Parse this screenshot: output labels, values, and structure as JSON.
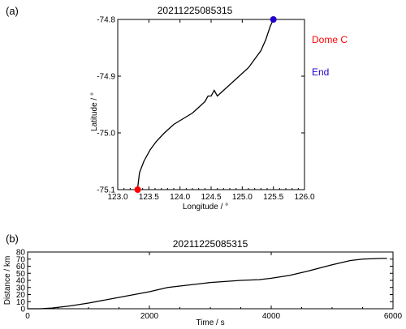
{
  "chart_data": [
    {
      "panel_label": "(a)",
      "type": "line",
      "title": "20211225085315",
      "xlabel": "Longitude / °",
      "ylabel": "Latitude / °",
      "xlim": [
        123.0,
        126.0
      ],
      "ylim": [
        -75.1,
        -74.8
      ],
      "xticks": [
        "123.0",
        "123.5",
        "124.0",
        "124.5",
        "125.0",
        "125.5",
        "126.0"
      ],
      "yticks": [
        "-74.8",
        "-74.9",
        "-75.0",
        "-75.1"
      ],
      "grid": false,
      "series": [
        {
          "x": [
            123.32,
            123.35,
            123.42,
            123.52,
            123.62,
            123.75,
            123.9,
            124.05,
            124.2,
            124.3,
            124.4,
            124.45,
            124.5,
            124.55,
            124.6,
            124.65,
            124.8,
            124.95,
            125.1,
            125.2,
            125.3,
            125.38,
            125.45,
            125.5
          ],
          "y": [
            -75.097,
            -75.07,
            -75.05,
            -75.03,
            -75.015,
            -75.0,
            -74.985,
            -74.975,
            -74.965,
            -74.955,
            -74.945,
            -74.935,
            -74.935,
            -74.925,
            -74.935,
            -74.93,
            -74.915,
            -74.9,
            -74.885,
            -74.87,
            -74.855,
            -74.835,
            -74.812,
            -74.8
          ]
        }
      ],
      "markers": [
        {
          "name": "Dome C",
          "x": 123.32,
          "y": -75.1,
          "color": "#ff0000"
        },
        {
          "name": "End",
          "x": 125.5,
          "y": -74.8,
          "color": "#2200cc"
        }
      ],
      "legend": [
        {
          "label": "Dome C",
          "color": "#ff0000"
        },
        {
          "label": "End",
          "color": "#2200cc"
        }
      ],
      "legend_position": "right"
    },
    {
      "panel_label": "(b)",
      "type": "line",
      "title": "20211225085315",
      "xlabel": "Time / s",
      "ylabel": "Distance / km",
      "xlim": [
        0,
        6000
      ],
      "ylim": [
        0,
        80
      ],
      "xticks": [
        "0",
        "2000",
        "4000",
        "6000"
      ],
      "yticks": [
        "0",
        "10",
        "20",
        "30",
        "40",
        "50",
        "60",
        "70",
        "80"
      ],
      "grid": false,
      "series": [
        {
          "x": [
            0,
            200,
            400,
            500,
            700,
            1000,
            1500,
            2000,
            2300,
            2600,
            3000,
            3500,
            3800,
            4000,
            4300,
            4600,
            5000,
            5300,
            5500,
            5800,
            5900
          ],
          "y": [
            0,
            0,
            1,
            2,
            4,
            8,
            16,
            24,
            30,
            33,
            37,
            40,
            41,
            43,
            47,
            53,
            62,
            68,
            70,
            71,
            71
          ]
        }
      ]
    }
  ]
}
